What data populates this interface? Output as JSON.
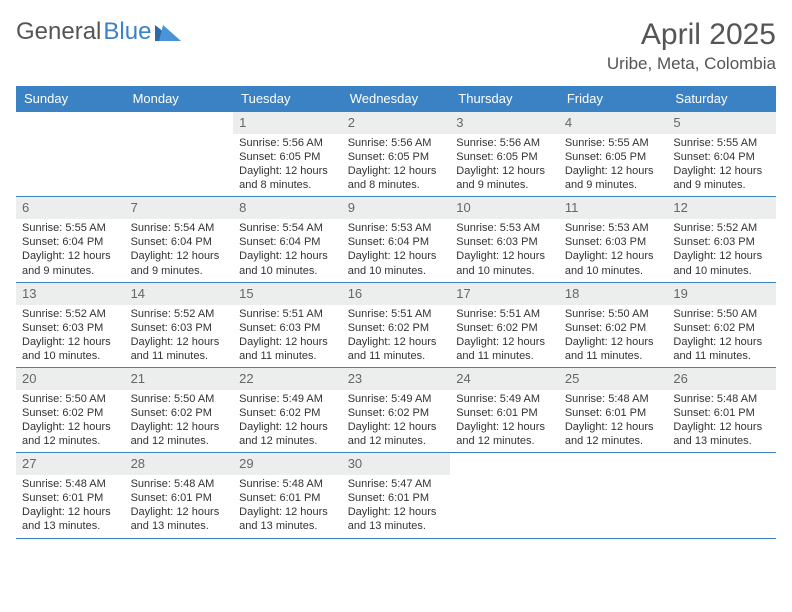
{
  "logo": {
    "text1": "General",
    "text2": "Blue"
  },
  "title": "April 2025",
  "location": "Uribe, Meta, Colombia",
  "colors": {
    "header_bg": "#3b82c4",
    "header_text": "#ffffff",
    "daynum_bg": "#eceded",
    "body_text": "#333333",
    "title_text": "#555555",
    "border": "#3b82c4"
  },
  "typography": {
    "title_size": 30,
    "location_size": 17,
    "dow_size": 13,
    "body_size": 11
  },
  "days_of_week": [
    "Sunday",
    "Monday",
    "Tuesday",
    "Wednesday",
    "Thursday",
    "Friday",
    "Saturday"
  ],
  "weeks": [
    [
      {
        "day": "",
        "sunrise": "",
        "sunset": "",
        "daylight": ""
      },
      {
        "day": "",
        "sunrise": "",
        "sunset": "",
        "daylight": ""
      },
      {
        "day": "1",
        "sunrise": "Sunrise: 5:56 AM",
        "sunset": "Sunset: 6:05 PM",
        "daylight": "Daylight: 12 hours and 8 minutes."
      },
      {
        "day": "2",
        "sunrise": "Sunrise: 5:56 AM",
        "sunset": "Sunset: 6:05 PM",
        "daylight": "Daylight: 12 hours and 8 minutes."
      },
      {
        "day": "3",
        "sunrise": "Sunrise: 5:56 AM",
        "sunset": "Sunset: 6:05 PM",
        "daylight": "Daylight: 12 hours and 9 minutes."
      },
      {
        "day": "4",
        "sunrise": "Sunrise: 5:55 AM",
        "sunset": "Sunset: 6:05 PM",
        "daylight": "Daylight: 12 hours and 9 minutes."
      },
      {
        "day": "5",
        "sunrise": "Sunrise: 5:55 AM",
        "sunset": "Sunset: 6:04 PM",
        "daylight": "Daylight: 12 hours and 9 minutes."
      }
    ],
    [
      {
        "day": "6",
        "sunrise": "Sunrise: 5:55 AM",
        "sunset": "Sunset: 6:04 PM",
        "daylight": "Daylight: 12 hours and 9 minutes."
      },
      {
        "day": "7",
        "sunrise": "Sunrise: 5:54 AM",
        "sunset": "Sunset: 6:04 PM",
        "daylight": "Daylight: 12 hours and 9 minutes."
      },
      {
        "day": "8",
        "sunrise": "Sunrise: 5:54 AM",
        "sunset": "Sunset: 6:04 PM",
        "daylight": "Daylight: 12 hours and 10 minutes."
      },
      {
        "day": "9",
        "sunrise": "Sunrise: 5:53 AM",
        "sunset": "Sunset: 6:04 PM",
        "daylight": "Daylight: 12 hours and 10 minutes."
      },
      {
        "day": "10",
        "sunrise": "Sunrise: 5:53 AM",
        "sunset": "Sunset: 6:03 PM",
        "daylight": "Daylight: 12 hours and 10 minutes."
      },
      {
        "day": "11",
        "sunrise": "Sunrise: 5:53 AM",
        "sunset": "Sunset: 6:03 PM",
        "daylight": "Daylight: 12 hours and 10 minutes."
      },
      {
        "day": "12",
        "sunrise": "Sunrise: 5:52 AM",
        "sunset": "Sunset: 6:03 PM",
        "daylight": "Daylight: 12 hours and 10 minutes."
      }
    ],
    [
      {
        "day": "13",
        "sunrise": "Sunrise: 5:52 AM",
        "sunset": "Sunset: 6:03 PM",
        "daylight": "Daylight: 12 hours and 10 minutes."
      },
      {
        "day": "14",
        "sunrise": "Sunrise: 5:52 AM",
        "sunset": "Sunset: 6:03 PM",
        "daylight": "Daylight: 12 hours and 11 minutes."
      },
      {
        "day": "15",
        "sunrise": "Sunrise: 5:51 AM",
        "sunset": "Sunset: 6:03 PM",
        "daylight": "Daylight: 12 hours and 11 minutes."
      },
      {
        "day": "16",
        "sunrise": "Sunrise: 5:51 AM",
        "sunset": "Sunset: 6:02 PM",
        "daylight": "Daylight: 12 hours and 11 minutes."
      },
      {
        "day": "17",
        "sunrise": "Sunrise: 5:51 AM",
        "sunset": "Sunset: 6:02 PM",
        "daylight": "Daylight: 12 hours and 11 minutes."
      },
      {
        "day": "18",
        "sunrise": "Sunrise: 5:50 AM",
        "sunset": "Sunset: 6:02 PM",
        "daylight": "Daylight: 12 hours and 11 minutes."
      },
      {
        "day": "19",
        "sunrise": "Sunrise: 5:50 AM",
        "sunset": "Sunset: 6:02 PM",
        "daylight": "Daylight: 12 hours and 11 minutes."
      }
    ],
    [
      {
        "day": "20",
        "sunrise": "Sunrise: 5:50 AM",
        "sunset": "Sunset: 6:02 PM",
        "daylight": "Daylight: 12 hours and 12 minutes."
      },
      {
        "day": "21",
        "sunrise": "Sunrise: 5:50 AM",
        "sunset": "Sunset: 6:02 PM",
        "daylight": "Daylight: 12 hours and 12 minutes."
      },
      {
        "day": "22",
        "sunrise": "Sunrise: 5:49 AM",
        "sunset": "Sunset: 6:02 PM",
        "daylight": "Daylight: 12 hours and 12 minutes."
      },
      {
        "day": "23",
        "sunrise": "Sunrise: 5:49 AM",
        "sunset": "Sunset: 6:02 PM",
        "daylight": "Daylight: 12 hours and 12 minutes."
      },
      {
        "day": "24",
        "sunrise": "Sunrise: 5:49 AM",
        "sunset": "Sunset: 6:01 PM",
        "daylight": "Daylight: 12 hours and 12 minutes."
      },
      {
        "day": "25",
        "sunrise": "Sunrise: 5:48 AM",
        "sunset": "Sunset: 6:01 PM",
        "daylight": "Daylight: 12 hours and 12 minutes."
      },
      {
        "day": "26",
        "sunrise": "Sunrise: 5:48 AM",
        "sunset": "Sunset: 6:01 PM",
        "daylight": "Daylight: 12 hours and 13 minutes."
      }
    ],
    [
      {
        "day": "27",
        "sunrise": "Sunrise: 5:48 AM",
        "sunset": "Sunset: 6:01 PM",
        "daylight": "Daylight: 12 hours and 13 minutes."
      },
      {
        "day": "28",
        "sunrise": "Sunrise: 5:48 AM",
        "sunset": "Sunset: 6:01 PM",
        "daylight": "Daylight: 12 hours and 13 minutes."
      },
      {
        "day": "29",
        "sunrise": "Sunrise: 5:48 AM",
        "sunset": "Sunset: 6:01 PM",
        "daylight": "Daylight: 12 hours and 13 minutes."
      },
      {
        "day": "30",
        "sunrise": "Sunrise: 5:47 AM",
        "sunset": "Sunset: 6:01 PM",
        "daylight": "Daylight: 12 hours and 13 minutes."
      },
      {
        "day": "",
        "sunrise": "",
        "sunset": "",
        "daylight": ""
      },
      {
        "day": "",
        "sunrise": "",
        "sunset": "",
        "daylight": ""
      },
      {
        "day": "",
        "sunrise": "",
        "sunset": "",
        "daylight": ""
      }
    ]
  ]
}
